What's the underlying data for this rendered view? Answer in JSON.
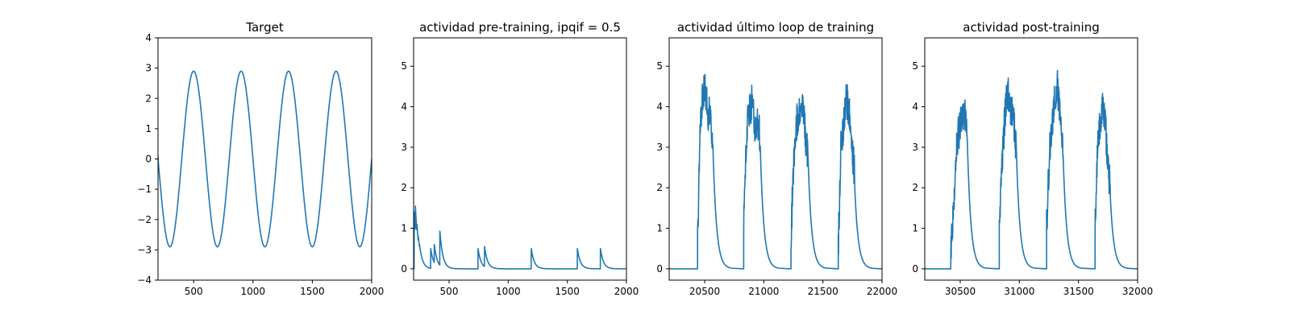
{
  "colors": {
    "series": "#1f77b4",
    "axes": "#000000",
    "background": "#ffffff"
  },
  "chart_data": [
    {
      "type": "line",
      "title": "Target",
      "xlim": [
        200,
        2000
      ],
      "ylim": [
        -4,
        4
      ],
      "xticks": [
        500,
        1000,
        1500,
        2000
      ],
      "yticks": [
        -4,
        -3,
        -2,
        -1,
        0,
        1,
        2,
        3,
        4
      ],
      "series": [
        {
          "kind": "sine",
          "amplitude": 2.9,
          "period": 400,
          "peak_x": [
            500,
            900,
            1300,
            1700
          ],
          "trough_x": [
            300,
            700,
            1100,
            1500,
            1900
          ],
          "x_start": 200,
          "y_start": 0.1,
          "x_end": 2000,
          "y_end": -0.2
        }
      ]
    },
    {
      "type": "line",
      "title": "actividad pre-training, ipqif = 0.5",
      "xlim": [
        200,
        2000
      ],
      "ylim": [
        -0.28,
        5.7
      ],
      "xticks": [
        500,
        1000,
        1500,
        2000
      ],
      "yticks": [
        0,
        1,
        2,
        3,
        4,
        5
      ],
      "series": [
        {
          "kind": "spikes",
          "decay": 25,
          "spikes": [
            {
              "x": 205,
              "y": 1.4
            },
            {
              "x": 215,
              "y": 1.55
            },
            {
              "x": 228,
              "y": 1.1
            },
            {
              "x": 240,
              "y": 0.8
            },
            {
              "x": 250,
              "y": 0.6
            },
            {
              "x": 345,
              "y": 0.5
            },
            {
              "x": 375,
              "y": 0.6
            },
            {
              "x": 422,
              "y": 0.93
            },
            {
              "x": 745,
              "y": 0.5
            },
            {
              "x": 800,
              "y": 0.55
            },
            {
              "x": 1195,
              "y": 0.5
            },
            {
              "x": 1585,
              "y": 0.5
            },
            {
              "x": 1780,
              "y": 0.5
            }
          ]
        }
      ]
    },
    {
      "type": "line",
      "title": "actividad último loop de training",
      "xlim": [
        20200,
        22000
      ],
      "ylim": [
        -0.28,
        5.7
      ],
      "xticks": [
        20500,
        21000,
        21500,
        22000
      ],
      "yticks": [
        0,
        1,
        2,
        3,
        4,
        5
      ],
      "series": [
        {
          "kind": "bursts",
          "decay": 30,
          "bursts": [
            {
              "start": 20440,
              "end": 20570,
              "peak": 4.5,
              "amp": [
                0.5,
                3.6,
                4.3,
                4.5,
                3.8,
                3.9,
                3.0
              ]
            },
            {
              "start": 20830,
              "end": 20970,
              "peak": 4.1,
              "amp": [
                1.0,
                3.3,
                3.9,
                4.1,
                3.6,
                3.7,
                3.2
              ]
            },
            {
              "start": 21230,
              "end": 21370,
              "peak": 4.2,
              "amp": [
                0.8,
                2.7,
                3.6,
                3.8,
                4.2,
                3.5,
                2.8
              ]
            },
            {
              "start": 21630,
              "end": 21770,
              "peak": 4.2,
              "amp": [
                0.5,
                3.1,
                3.6,
                4.2,
                3.8,
                3.0,
                2.3
              ]
            }
          ]
        }
      ]
    },
    {
      "type": "line",
      "title": "actividad post-training",
      "xlim": [
        30200,
        32000
      ],
      "ylim": [
        -0.28,
        5.7
      ],
      "xticks": [
        30500,
        31000,
        31500,
        32000
      ],
      "yticks": [
        0,
        1,
        2,
        3,
        4,
        5
      ],
      "series": [
        {
          "kind": "bursts",
          "decay": 30,
          "bursts": [
            {
              "start": 30420,
              "end": 30560,
              "peak": 3.9,
              "amp": [
                0.5,
                1.5,
                3.0,
                3.4,
                3.9,
                3.8,
                3.5
              ]
            },
            {
              "start": 30830,
              "end": 30970,
              "peak": 4.4,
              "amp": [
                0.8,
                2.6,
                3.7,
                4.4,
                4.0,
                3.9,
                3.0
              ]
            },
            {
              "start": 31230,
              "end": 31370,
              "peak": 4.5,
              "amp": [
                1.0,
                2.8,
                3.5,
                4.2,
                4.5,
                3.7,
                2.9
              ]
            },
            {
              "start": 31640,
              "end": 31770,
              "peak": 4.1,
              "amp": [
                0.9,
                3.0,
                3.6,
                4.1,
                3.5,
                2.6,
                1.9
              ]
            }
          ]
        }
      ]
    }
  ]
}
